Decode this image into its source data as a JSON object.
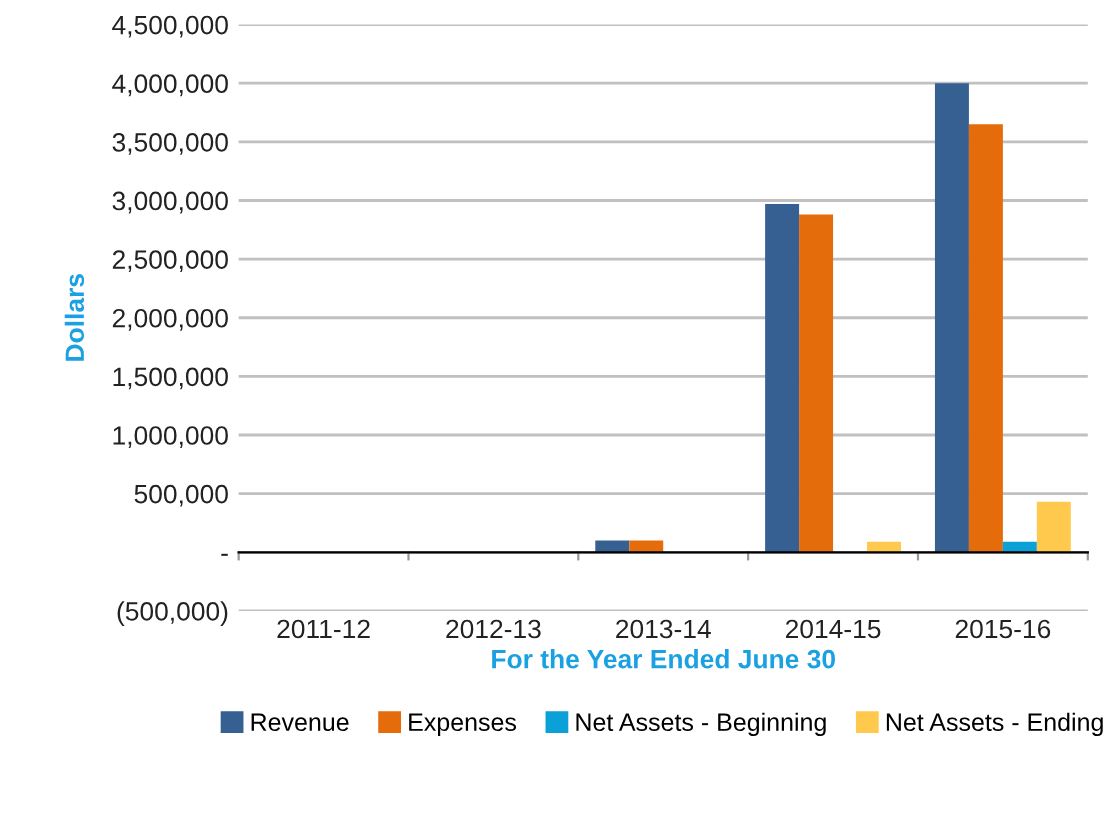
{
  "chart_data": {
    "type": "bar",
    "xlabel": "For the Year Ended June 30",
    "ylabel": "Dollars",
    "categories": [
      "2011-12",
      "2012-13",
      "2013-14",
      "2014-15",
      "2015-16"
    ],
    "series": [
      {
        "name": "Revenue",
        "color": "#366092",
        "values": [
          0,
          0,
          100000,
          2970000,
          4000000
        ]
      },
      {
        "name": "Expenses",
        "color": "#e46c0a",
        "values": [
          0,
          0,
          100000,
          2880000,
          3650000
        ]
      },
      {
        "name": "Net Assets - Beginning",
        "color": "#0ba0d8",
        "values": [
          0,
          0,
          0,
          0,
          90000
        ]
      },
      {
        "name": "Net Assets - Ending",
        "color": "#ffc94d",
        "values": [
          0,
          0,
          0,
          90000,
          430000
        ]
      }
    ],
    "ylim": [
      -500000,
      4500000
    ],
    "yticks": [
      {
        "value": -500000,
        "label": "(500,000)"
      },
      {
        "value": 0,
        "label": "-"
      },
      {
        "value": 500000,
        "label": "500,000"
      },
      {
        "value": 1000000,
        "label": "1,000,000"
      },
      {
        "value": 1500000,
        "label": "1,500,000"
      },
      {
        "value": 2000000,
        "label": "2,000,000"
      },
      {
        "value": 2500000,
        "label": "2,500,000"
      },
      {
        "value": 3000000,
        "label": "3,000,000"
      },
      {
        "value": 3500000,
        "label": "3,500,000"
      },
      {
        "value": 4000000,
        "label": "4,000,000"
      },
      {
        "value": 4500000,
        "label": "4,500,000"
      }
    ],
    "grid": "y",
    "legend": "bottom"
  }
}
